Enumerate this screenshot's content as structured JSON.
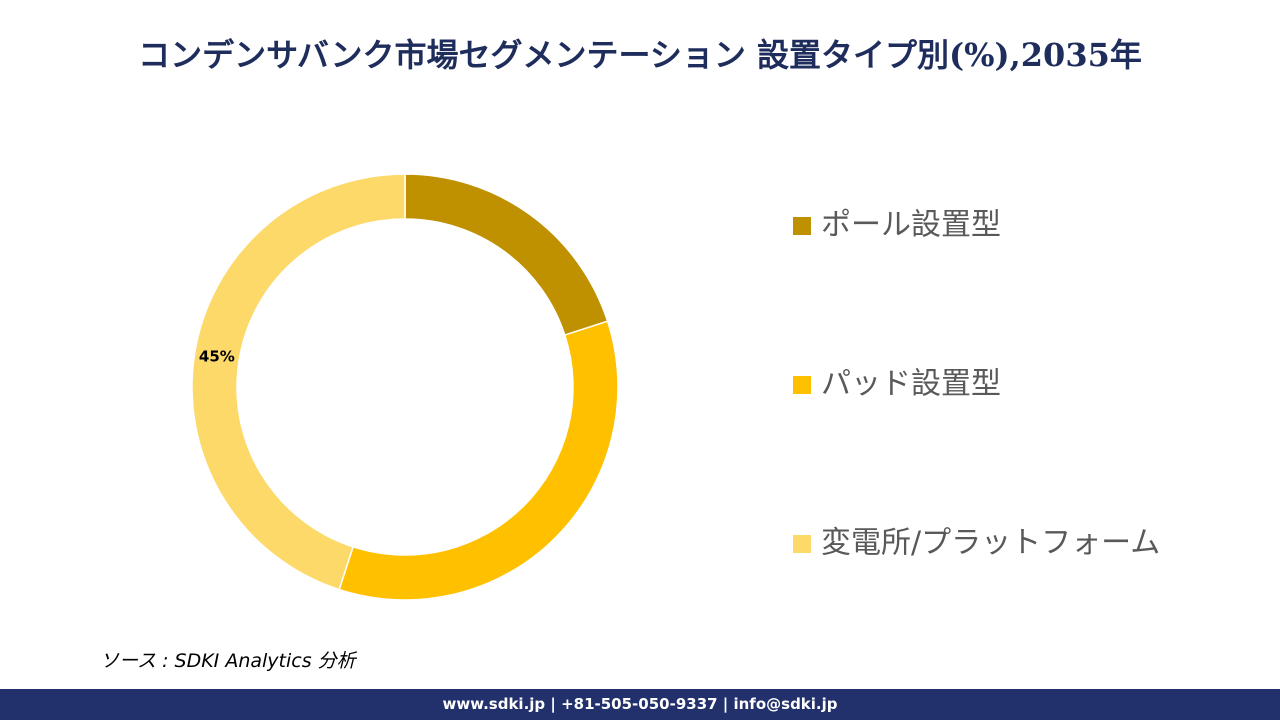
{
  "chart_data": {
    "type": "donut",
    "title": "コンデンサバンク市場セグメンテーション 設置タイプ別(%),2035年",
    "categories": [
      "ポール設置型",
      "パッド設置型",
      "変電所/プラットフォーム"
    ],
    "values": [
      20,
      35,
      45
    ],
    "value_labels": [
      null,
      null,
      "45%"
    ],
    "colors": [
      "#bf9000",
      "#ffc000",
      "#fdd96a"
    ],
    "legend": "right"
  },
  "source": "ソース : SDKI Analytics 分析",
  "footer": "www.sdki.jp | +81-505-050-9337 | info@sdki.jp"
}
